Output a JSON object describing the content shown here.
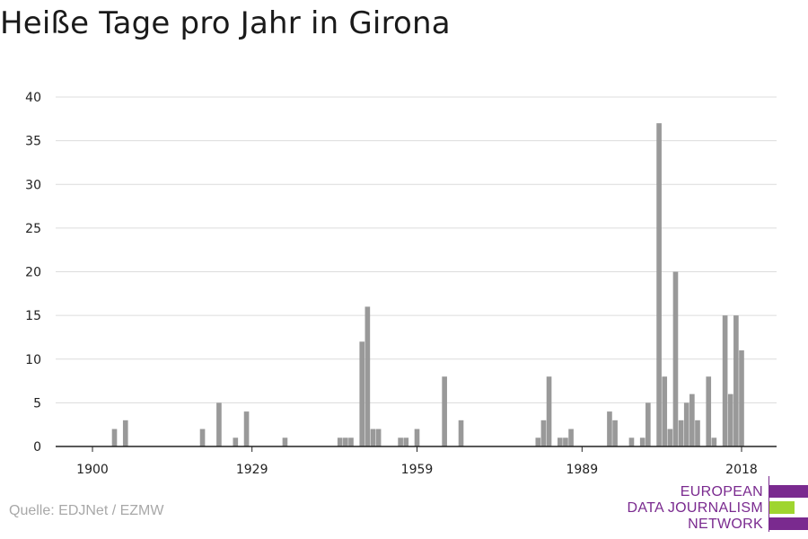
{
  "title": "Heiße Tage pro Jahr in Girona",
  "source": "Quelle: EDJNet / EZMW",
  "logo": {
    "lines": [
      "EUROPEAN",
      "DATA JOURNALISM",
      "NETWORK"
    ],
    "colors": {
      "purple": "#7a2a8f",
      "green": "#9fd52f"
    }
  },
  "chart_data": {
    "type": "bar",
    "title": "Heiße Tage pro Jahr in Girona",
    "xlabel": "",
    "ylabel": "",
    "xlim": [
      1900,
      2018
    ],
    "ylim": [
      0,
      40
    ],
    "yticks": [
      0,
      5,
      10,
      15,
      20,
      25,
      30,
      35,
      40
    ],
    "xticks": [
      1900,
      1929,
      1959,
      1989,
      2018
    ],
    "grid": true,
    "bar_color": "#999999",
    "series": [
      {
        "points": [
          {
            "x": 1904,
            "y": 2
          },
          {
            "x": 1906,
            "y": 3
          },
          {
            "x": 1920,
            "y": 2
          },
          {
            "x": 1923,
            "y": 5
          },
          {
            "x": 1926,
            "y": 1
          },
          {
            "x": 1928,
            "y": 4
          },
          {
            "x": 1935,
            "y": 1
          },
          {
            "x": 1945,
            "y": 1
          },
          {
            "x": 1946,
            "y": 1
          },
          {
            "x": 1947,
            "y": 1
          },
          {
            "x": 1949,
            "y": 12
          },
          {
            "x": 1950,
            "y": 16
          },
          {
            "x": 1951,
            "y": 2
          },
          {
            "x": 1952,
            "y": 2
          },
          {
            "x": 1956,
            "y": 1
          },
          {
            "x": 1957,
            "y": 1
          },
          {
            "x": 1959,
            "y": 2
          },
          {
            "x": 1964,
            "y": 8
          },
          {
            "x": 1967,
            "y": 3
          },
          {
            "x": 1981,
            "y": 1
          },
          {
            "x": 1982,
            "y": 3
          },
          {
            "x": 1983,
            "y": 8
          },
          {
            "x": 1985,
            "y": 1
          },
          {
            "x": 1986,
            "y": 1
          },
          {
            "x": 1987,
            "y": 2
          },
          {
            "x": 1994,
            "y": 4
          },
          {
            "x": 1995,
            "y": 3
          },
          {
            "x": 1998,
            "y": 1
          },
          {
            "x": 2000,
            "y": 1
          },
          {
            "x": 2001,
            "y": 5
          },
          {
            "x": 2003,
            "y": 37
          },
          {
            "x": 2004,
            "y": 8
          },
          {
            "x": 2005,
            "y": 2
          },
          {
            "x": 2006,
            "y": 20
          },
          {
            "x": 2007,
            "y": 3
          },
          {
            "x": 2008,
            "y": 5
          },
          {
            "x": 2009,
            "y": 6
          },
          {
            "x": 2010,
            "y": 3
          },
          {
            "x": 2012,
            "y": 8
          },
          {
            "x": 2013,
            "y": 1
          },
          {
            "x": 2015,
            "y": 15
          },
          {
            "x": 2016,
            "y": 6
          },
          {
            "x": 2017,
            "y": 15
          },
          {
            "x": 2018,
            "y": 11
          }
        ]
      }
    ]
  }
}
